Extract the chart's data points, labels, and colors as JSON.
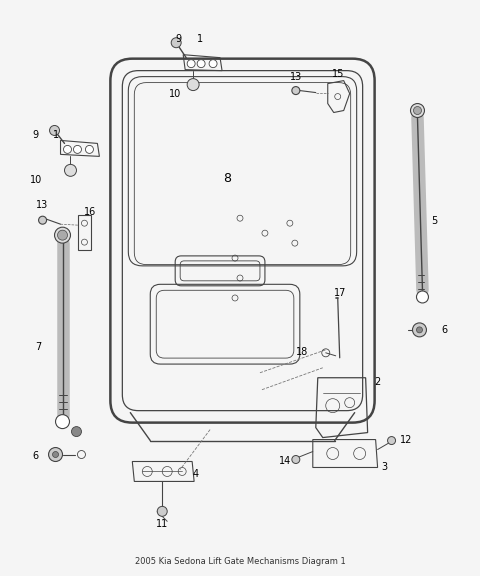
{
  "title": "2005 Kia Sedona Lift Gate Mechanisms Diagram 1",
  "bg": "#f5f5f5",
  "lc": "#444444",
  "fig_w": 4.8,
  "fig_h": 5.76,
  "dpi": 100
}
